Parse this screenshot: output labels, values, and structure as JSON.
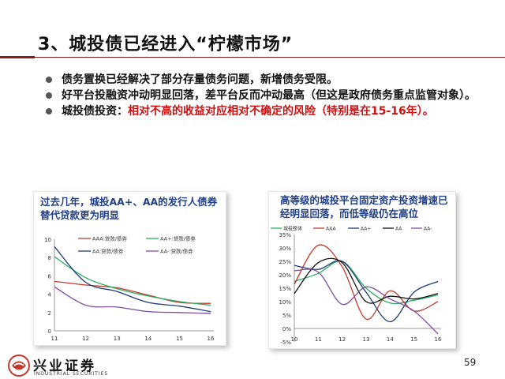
{
  "slide": {
    "title": "3、城投债已经进入“柠檬市场”",
    "bullets": [
      {
        "text": "债务置换已经解决了部分存量债务问题，新增债务受限。"
      },
      {
        "text": "好平台投融资冲动明显回落，差平台反而冲动最高（但这是政府债务重点监管对象）。"
      },
      {
        "prefix": "城投债投资：",
        "highlight": "相对不高的收益对应相对不确定的风险（特别是在15-16年）。"
      }
    ],
    "page_number": "59"
  },
  "logo": {
    "name": "兴业证券",
    "subtitle": "INDUSTRIAL SECURITIES"
  },
  "chart_data": [
    {
      "type": "line",
      "title": "过去几年，城投AA+、AA的发行人债券替代贷款更为明显",
      "x": [
        "11",
        "12",
        "13",
        "14",
        "15",
        "16"
      ],
      "ylim": [
        0,
        10
      ],
      "yticks": [
        "0",
        "2",
        "4",
        "6",
        "8",
        "10"
      ],
      "legend": "top",
      "series": [
        {
          "name": "AAA:贷款/债券",
          "color": "#c0392b",
          "values": [
            5.4,
            5.0,
            4.7,
            3.9,
            3.1,
            3.0
          ]
        },
        {
          "name": "AA+:贷款/债券",
          "color": "#27ae60",
          "values": [
            8.1,
            5.8,
            4.6,
            3.8,
            3.2,
            2.8
          ]
        },
        {
          "name": "AA:贷款/债券",
          "color": "#1f3b73",
          "values": [
            9.2,
            5.3,
            4.3,
            3.1,
            2.7,
            2.1
          ]
        },
        {
          "name": "AA-:贷款/债券",
          "color": "#7d4ea0",
          "values": [
            4.8,
            2.8,
            2.6,
            2.1,
            2.0,
            1.9
          ]
        }
      ]
    },
    {
      "type": "line",
      "title": "高等级的城投平台固定资产投资增速已经明显回落，而低等级仍在高位",
      "x": [
        "10",
        "11",
        "12",
        "13",
        "14",
        "15",
        "16"
      ],
      "ylim": [
        -5,
        35
      ],
      "yticks": [
        "-5%",
        "0%",
        "5%",
        "10%",
        "15%",
        "20%",
        "25%",
        "30%",
        "35%"
      ],
      "legend": "top",
      "series": [
        {
          "name": "城投整体",
          "color": "#27ae60",
          "values": [
            17.5,
            20.5,
            25.0,
            15.0,
            9.5,
            10.5,
            12.5
          ]
        },
        {
          "name": "AAA",
          "color": "#c0392b",
          "values": [
            16.5,
            31.0,
            23.0,
            3.5,
            14.0,
            6.5,
            10.0
          ]
        },
        {
          "name": "AA+",
          "color": "#1f3b73",
          "values": [
            23.5,
            22.0,
            25.0,
            13.5,
            2.5,
            13.5,
            17.5
          ]
        },
        {
          "name": "AA",
          "color": "#111111",
          "values": [
            13.0,
            24.5,
            24.5,
            10.0,
            12.0,
            11.0,
            13.0
          ]
        },
        {
          "name": "AA-",
          "color": "#7d4ea0",
          "values": [
            21.5,
            21.0,
            9.0,
            15.5,
            11.0,
            6.5,
            -2.0
          ]
        }
      ]
    }
  ]
}
